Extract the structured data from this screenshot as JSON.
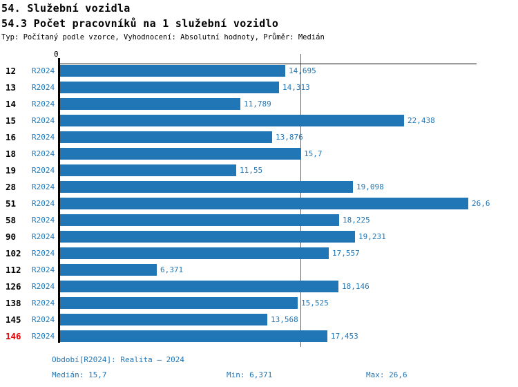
{
  "header": {
    "title": "54. Služební vozidla",
    "subtitle": "54.3 Počet pracovníků na 1 služební vozidlo",
    "meta": "Typ: Počítaný podle vzorce, Vyhodnocení: Absolutní hodnoty, Průměr: Medián"
  },
  "axis": {
    "zero_label": "0"
  },
  "rows": [
    {
      "id": "12",
      "period": "R2024",
      "value": 14.695,
      "label": "14,695",
      "highlight": false
    },
    {
      "id": "13",
      "period": "R2024",
      "value": 14.313,
      "label": "14,313",
      "highlight": false
    },
    {
      "id": "14",
      "period": "R2024",
      "value": 11.789,
      "label": "11,789",
      "highlight": false
    },
    {
      "id": "15",
      "period": "R2024",
      "value": 22.438,
      "label": "22,438",
      "highlight": false
    },
    {
      "id": "16",
      "period": "R2024",
      "value": 13.876,
      "label": "13,876",
      "highlight": false
    },
    {
      "id": "18",
      "period": "R2024",
      "value": 15.7,
      "label": "15,7",
      "highlight": false
    },
    {
      "id": "19",
      "period": "R2024",
      "value": 11.55,
      "label": "11,55",
      "highlight": false
    },
    {
      "id": "28",
      "period": "R2024",
      "value": 19.098,
      "label": "19,098",
      "highlight": false
    },
    {
      "id": "51",
      "period": "R2024",
      "value": 26.6,
      "label": "26,6",
      "highlight": false
    },
    {
      "id": "58",
      "period": "R2024",
      "value": 18.225,
      "label": "18,225",
      "highlight": false
    },
    {
      "id": "90",
      "period": "R2024",
      "value": 19.231,
      "label": "19,231",
      "highlight": false
    },
    {
      "id": "102",
      "period": "R2024",
      "value": 17.557,
      "label": "17,557",
      "highlight": false
    },
    {
      "id": "112",
      "period": "R2024",
      "value": 6.371,
      "label": "6,371",
      "highlight": false
    },
    {
      "id": "126",
      "period": "R2024",
      "value": 18.146,
      "label": "18,146",
      "highlight": false
    },
    {
      "id": "138",
      "period": "R2024",
      "value": 15.525,
      "label": "15,525",
      "highlight": false
    },
    {
      "id": "145",
      "period": "R2024",
      "value": 13.568,
      "label": "13,568",
      "highlight": false
    },
    {
      "id": "146",
      "period": "R2024",
      "value": 17.453,
      "label": "17,453",
      "highlight": true
    }
  ],
  "footer": {
    "period_line": "Období[R2024]: Realita – 2024",
    "median": "Medián: 15,7",
    "min": "Min: 6,371",
    "max": "Max: 26,6"
  },
  "colors": {
    "bar": "#2176B5",
    "text_blue": "#2176B5",
    "highlight_red": "#DD0000",
    "axis_black": "#000000"
  },
  "chart_data": {
    "type": "bar",
    "orientation": "horizontal",
    "title": "54. Služební vozidla",
    "subtitle": "54.3 Počet pracovníků na 1 služební vozidlo",
    "categories": [
      "12",
      "13",
      "14",
      "15",
      "16",
      "18",
      "19",
      "28",
      "51",
      "58",
      "90",
      "102",
      "112",
      "126",
      "138",
      "145",
      "146"
    ],
    "series": [
      {
        "name": "R2024",
        "values": [
          14.695,
          14.313,
          11.789,
          22.438,
          13.876,
          15.7,
          11.55,
          19.098,
          26.6,
          18.225,
          19.231,
          17.557,
          6.371,
          18.146,
          15.525,
          13.568,
          17.453
        ]
      }
    ],
    "value_labels": [
      "14,695",
      "14,313",
      "11,789",
      "22,438",
      "13,876",
      "15,7",
      "11,55",
      "19,098",
      "26,6",
      "18,225",
      "19,231",
      "17,557",
      "6,371",
      "18,146",
      "15,525",
      "13,568",
      "17,453"
    ],
    "xlabel": "",
    "ylabel": "",
    "xlim": [
      0,
      27.1
    ],
    "grid": false,
    "legend_position": "none",
    "median_line_x": 15.7,
    "stats": {
      "median": 15.7,
      "min": 6.371,
      "max": 26.6
    },
    "highlighted_category": "146"
  }
}
